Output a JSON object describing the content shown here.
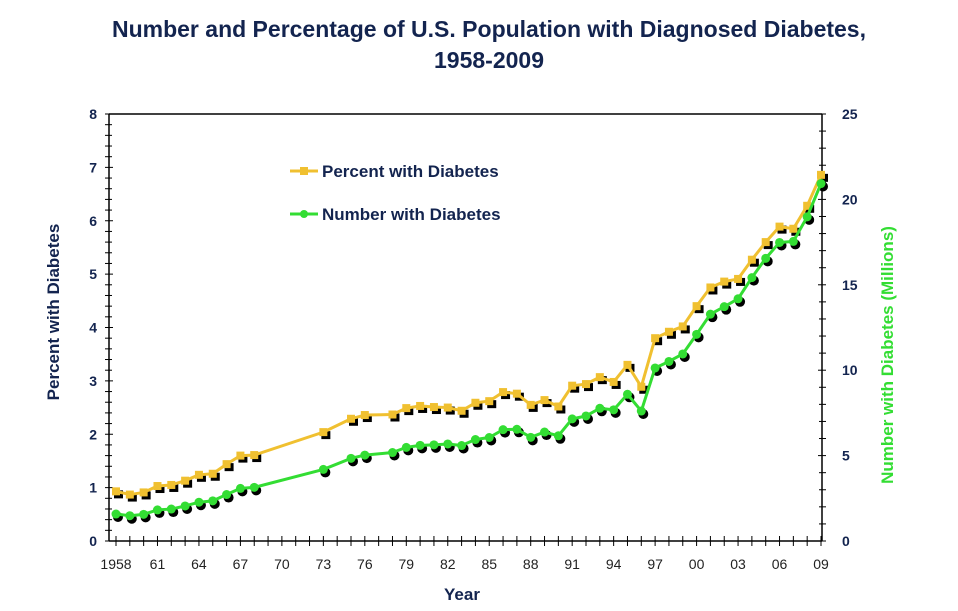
{
  "chart_data": {
    "type": "line",
    "title": "Number and Percentage of U.S. Population with Diagnosed Diabetes,",
    "subtitle": "1958-2009",
    "xlabel": "Year",
    "ylabel_left": "Percent with Diabetes",
    "ylabel_right": "Number with Diabetes (Millions)",
    "xlim": [
      1958,
      2009
    ],
    "ylim_left": [
      0,
      8
    ],
    "ylim_right": [
      0,
      25
    ],
    "yticks_left": [
      "0",
      "1",
      "2",
      "3",
      "4",
      "5",
      "6",
      "7",
      "8"
    ],
    "yticks_right": [
      "0",
      "5",
      "10",
      "15",
      "20",
      "25"
    ],
    "xtick_labels": [
      "1958",
      "61",
      "64",
      "67",
      "70",
      "73",
      "76",
      "79",
      "82",
      "85",
      "88",
      "91",
      "94",
      "97",
      "00",
      "03",
      "06",
      "09"
    ],
    "xtick_values": [
      1958,
      1961,
      1964,
      1967,
      1970,
      1973,
      1976,
      1979,
      1982,
      1985,
      1988,
      1991,
      1994,
      1997,
      2000,
      2003,
      2006,
      2009
    ],
    "grid": false,
    "legend_position": "top-left",
    "x": [
      1958,
      1959,
      1960,
      1961,
      1962,
      1963,
      1964,
      1965,
      1966,
      1967,
      1968,
      1973,
      1975,
      1976,
      1978,
      1979,
      1980,
      1981,
      1982,
      1983,
      1984,
      1985,
      1986,
      1987,
      1988,
      1989,
      1990,
      1991,
      1992,
      1993,
      1994,
      1995,
      1996,
      1997,
      1998,
      1999,
      2000,
      2001,
      2002,
      2003,
      2004,
      2005,
      2006,
      2007,
      2008,
      2009
    ],
    "series": [
      {
        "name": "Percent with Diabetes",
        "axis": "left",
        "color": "#f0c030",
        "marker": "square",
        "values": [
          0.93,
          0.87,
          0.91,
          1.03,
          1.05,
          1.13,
          1.24,
          1.26,
          1.44,
          1.6,
          1.61,
          2.04,
          2.29,
          2.36,
          2.37,
          2.49,
          2.53,
          2.51,
          2.5,
          2.44,
          2.59,
          2.62,
          2.79,
          2.76,
          2.55,
          2.64,
          2.52,
          2.91,
          2.94,
          3.07,
          2.98,
          3.3,
          2.89,
          3.8,
          3.92,
          4.02,
          4.4,
          4.75,
          4.86,
          4.91,
          5.27,
          5.6,
          5.89,
          5.85,
          6.28,
          6.86
        ]
      },
      {
        "name": "Number with Diabetes",
        "axis": "right",
        "color": "#33dd33",
        "marker": "circle",
        "values": [
          1.58,
          1.48,
          1.56,
          1.82,
          1.87,
          2.05,
          2.27,
          2.35,
          2.72,
          3.08,
          3.14,
          4.19,
          4.84,
          5.03,
          5.18,
          5.48,
          5.6,
          5.63,
          5.68,
          5.59,
          5.94,
          6.06,
          6.52,
          6.54,
          6.07,
          6.38,
          6.16,
          7.15,
          7.32,
          7.77,
          7.68,
          8.59,
          7.61,
          10.13,
          10.51,
          10.95,
          12.1,
          13.28,
          13.72,
          14.18,
          15.42,
          16.55,
          17.48,
          17.54,
          18.98,
          20.93
        ]
      }
    ]
  },
  "colors": {
    "title": "#13244f",
    "axis_left_title": "#13244f",
    "axis_right_title": "#33dd33",
    "percent_line": "#f0c030",
    "number_line": "#33dd33",
    "shadow": "#000000"
  }
}
